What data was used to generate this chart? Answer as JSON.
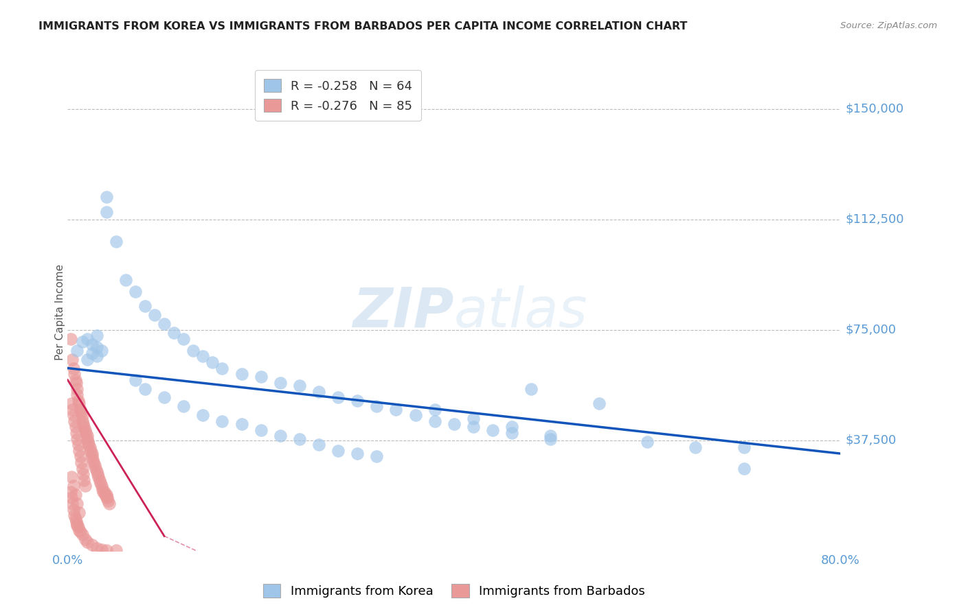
{
  "title": "IMMIGRANTS FROM KOREA VS IMMIGRANTS FROM BARBADOS PER CAPITA INCOME CORRELATION CHART",
  "source": "Source: ZipAtlas.com",
  "ylabel": "Per Capita Income",
  "xlim": [
    0.0,
    0.8
  ],
  "ylim": [
    0,
    162000
  ],
  "ytick_vals": [
    0,
    37500,
    75000,
    112500,
    150000
  ],
  "ytick_labels": [
    "",
    "$37,500",
    "$75,000",
    "$112,500",
    "$150,000"
  ],
  "xtick_vals": [
    0.0,
    0.8
  ],
  "xtick_labels": [
    "0.0%",
    "80.0%"
  ],
  "korea_color": "#9fc5e8",
  "barbados_color": "#ea9999",
  "korea_line_color": "#1155bb",
  "barbados_line_color": "#cc2255",
  "legend_korea_R": "-0.258",
  "legend_korea_N": "64",
  "legend_barbados_R": "-0.276",
  "legend_barbados_N": "85",
  "watermark": "ZIPatlas",
  "background_color": "#ffffff",
  "grid_color": "#bbbbbb",
  "title_color": "#222222",
  "axis_tick_color": "#5b9bd5",
  "korea_scatter_x": [
    0.01,
    0.015,
    0.02,
    0.02,
    0.025,
    0.025,
    0.03,
    0.03,
    0.03,
    0.035,
    0.04,
    0.04,
    0.05,
    0.06,
    0.07,
    0.08,
    0.09,
    0.1,
    0.11,
    0.12,
    0.13,
    0.14,
    0.15,
    0.16,
    0.18,
    0.2,
    0.22,
    0.24,
    0.26,
    0.28,
    0.3,
    0.32,
    0.34,
    0.36,
    0.38,
    0.4,
    0.42,
    0.44,
    0.46,
    0.48,
    0.5,
    0.55,
    0.6,
    0.65,
    0.7,
    0.07,
    0.08,
    0.1,
    0.12,
    0.14,
    0.16,
    0.18,
    0.2,
    0.22,
    0.24,
    0.26,
    0.28,
    0.3,
    0.32,
    0.38,
    0.42,
    0.46,
    0.5,
    0.7
  ],
  "korea_scatter_y": [
    68000,
    71000,
    65000,
    72000,
    67000,
    70000,
    69000,
    66000,
    73000,
    68000,
    115000,
    120000,
    105000,
    92000,
    88000,
    83000,
    80000,
    77000,
    74000,
    72000,
    68000,
    66000,
    64000,
    62000,
    60000,
    59000,
    57000,
    56000,
    54000,
    52000,
    51000,
    49000,
    48000,
    46000,
    44000,
    43000,
    42000,
    41000,
    40000,
    55000,
    38000,
    50000,
    37000,
    35000,
    28000,
    58000,
    55000,
    52000,
    49000,
    46000,
    44000,
    43000,
    41000,
    39000,
    38000,
    36000,
    34000,
    33000,
    32000,
    48000,
    45000,
    42000,
    39000,
    35000
  ],
  "barbados_scatter_x": [
    0.003,
    0.005,
    0.006,
    0.007,
    0.008,
    0.009,
    0.01,
    0.01,
    0.011,
    0.012,
    0.013,
    0.014,
    0.015,
    0.015,
    0.016,
    0.017,
    0.018,
    0.019,
    0.02,
    0.02,
    0.021,
    0.022,
    0.023,
    0.024,
    0.025,
    0.025,
    0.026,
    0.027,
    0.028,
    0.029,
    0.03,
    0.031,
    0.032,
    0.033,
    0.034,
    0.035,
    0.036,
    0.037,
    0.038,
    0.039,
    0.04,
    0.04,
    0.041,
    0.042,
    0.043,
    0.004,
    0.005,
    0.006,
    0.007,
    0.008,
    0.009,
    0.01,
    0.011,
    0.012,
    0.013,
    0.014,
    0.015,
    0.016,
    0.017,
    0.018,
    0.003,
    0.004,
    0.005,
    0.006,
    0.007,
    0.008,
    0.009,
    0.01,
    0.01,
    0.011,
    0.012,
    0.013,
    0.015,
    0.018,
    0.02,
    0.025,
    0.03,
    0.035,
    0.04,
    0.05,
    0.004,
    0.006,
    0.008,
    0.01,
    0.012
  ],
  "barbados_scatter_y": [
    72000,
    65000,
    62000,
    60000,
    58000,
    57000,
    55000,
    53000,
    51000,
    50000,
    48000,
    47000,
    46000,
    44000,
    43000,
    42000,
    41000,
    40000,
    39000,
    38000,
    37000,
    36000,
    35000,
    34000,
    33000,
    32000,
    31000,
    30000,
    29000,
    28000,
    27000,
    26000,
    25000,
    24000,
    23000,
    22000,
    21000,
    20000,
    20000,
    19000,
    19000,
    18000,
    18000,
    17000,
    16000,
    50000,
    48000,
    46000,
    44000,
    42000,
    40000,
    38000,
    36000,
    34000,
    32000,
    30000,
    28000,
    26000,
    24000,
    22000,
    20000,
    18000,
    16000,
    14000,
    12000,
    11000,
    10000,
    9000,
    8500,
    8000,
    7000,
    6500,
    5500,
    4000,
    3000,
    2000,
    1000,
    500,
    200,
    100,
    25000,
    22000,
    19000,
    16000,
    13000
  ],
  "korea_trendline_x": [
    0.0,
    0.8
  ],
  "korea_trendline_y": [
    62000,
    33000
  ],
  "barbados_trendline_x": [
    0.0,
    0.1
  ],
  "barbados_trendline_y": [
    58000,
    5000
  ]
}
